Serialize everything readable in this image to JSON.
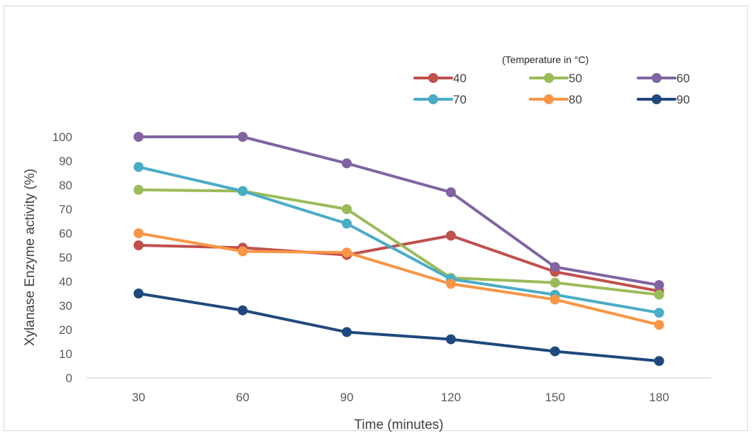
{
  "chart_data": {
    "type": "line",
    "title": "",
    "xlabel": "Time (minutes)",
    "ylabel": "Xylanase Enzyme activity (%)",
    "x": [
      30,
      60,
      90,
      120,
      150,
      180
    ],
    "x_tick_labels": [
      "30",
      "60",
      "90",
      "120",
      "150",
      "180"
    ],
    "ylim": [
      0,
      100
    ],
    "y_ticks": [
      0,
      10,
      20,
      30,
      40,
      50,
      60,
      70,
      80,
      90,
      100
    ],
    "grid": false,
    "legend": {
      "title": "(Temperature in °C)",
      "placement": "top-right"
    },
    "series": [
      {
        "name": "40",
        "color": "#c0504d",
        "values": [
          55,
          54,
          51,
          59,
          44,
          36
        ]
      },
      {
        "name": "50",
        "color": "#9bbb59",
        "values": [
          78,
          77.5,
          70,
          41.5,
          39.5,
          34.5
        ]
      },
      {
        "name": "60",
        "color": "#8064a2",
        "values": [
          100,
          100,
          89,
          77,
          46,
          38.5
        ]
      },
      {
        "name": "70",
        "color": "#4bacc6",
        "values": [
          87.5,
          77.5,
          64,
          41,
          34.5,
          27
        ]
      },
      {
        "name": "80",
        "color": "#f79646",
        "values": [
          60,
          52.5,
          52,
          39,
          32.5,
          22
        ]
      },
      {
        "name": "90",
        "color": "#1f497d",
        "values": [
          35,
          28,
          19,
          16,
          11,
          7
        ]
      }
    ]
  }
}
